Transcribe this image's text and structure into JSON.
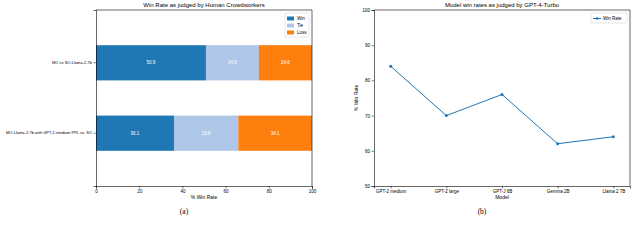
{
  "chart_data": [
    {
      "type": "bar",
      "orientation": "horizontal",
      "stacked": true,
      "data_labels": true,
      "title": "Win Rate as judged by Human Crowdworkers",
      "x_label": "% Win Rate",
      "label": "(a)",
      "categories": [
        "MO vs SO-Llama-2-7b",
        "MO-Llama-2-7b with GPT-2-medium PPL vs. SO"
      ],
      "series": [
        {
          "name": "Win",
          "color": "#1f77b4",
          "values": [
            50.9,
            36.1
          ]
        },
        {
          "name": "Tie",
          "color": "#aec7e8",
          "values": [
            24.5,
            29.8
          ]
        },
        {
          "name": "Loss",
          "color": "#ff7f0e",
          "values": [
            24.6,
            34.1
          ]
        }
      ],
      "xlim": [
        0,
        100
      ],
      "xticks": [
        0,
        20,
        40,
        60,
        80,
        100
      ],
      "legend": "upper right",
      "grid": false
    },
    {
      "type": "line",
      "title": "Model win rates as judged by GPT-4-Turbo",
      "x_label": "Model",
      "y_label": "% Win Rate",
      "label": "(b)",
      "categories": [
        "GPT-2 medium",
        "GPT-2 large",
        "GPT-J 6B",
        "Gemma 2B",
        "Llama 2 7B"
      ],
      "series": [
        {
          "name": "Win Rate",
          "color": "#1f77b4",
          "marker": "circle",
          "values": [
            84,
            70,
            76,
            62,
            64
          ]
        }
      ],
      "ylim": [
        50,
        100
      ],
      "yticks": [
        50,
        60,
        70,
        80,
        90,
        100
      ],
      "legend": "upper right",
      "grid": false
    }
  ]
}
